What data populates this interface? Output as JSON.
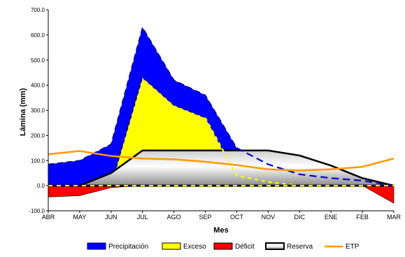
{
  "chart_data": {
    "type": "area",
    "xlabel": "Mes",
    "ylabel": "Lámina (mm)",
    "categories": [
      "ABR",
      "MAY",
      "JUN",
      "JUL",
      "AGO",
      "SEP",
      "OCT",
      "NOV",
      "DIC",
      "ENE",
      "FEB",
      "MAR"
    ],
    "ylim": [
      -100,
      700
    ],
    "yticks": [
      "-100.0",
      "0.0",
      "100.0",
      "200.0",
      "300.0",
      "400.0",
      "500.0",
      "600.0",
      "700.0"
    ],
    "grid": false,
    "legend_position": "bottom",
    "series": [
      {
        "name": "Precipitación",
        "color": "#0000FF",
        "values": [
          85,
          100,
          165,
          630,
          420,
          360,
          150,
          85,
          45,
          30,
          20,
          0
        ]
      },
      {
        "name": "Exceso",
        "color": "#FFFF00",
        "values": [
          0,
          0,
          0,
          430,
          320,
          270,
          40,
          15,
          0,
          0,
          0,
          0
        ]
      },
      {
        "name": "Déficit",
        "color": "#FF0000",
        "values": [
          -45,
          -40,
          -8,
          0,
          0,
          0,
          0,
          0,
          0,
          0,
          0,
          -70
        ]
      },
      {
        "name": "Reserva",
        "color": "#000000",
        "values": [
          0,
          0,
          50,
          140,
          140,
          140,
          140,
          140,
          120,
          80,
          30,
          0
        ]
      },
      {
        "name": "ETP",
        "color": "#FF9900",
        "values": [
          125,
          138,
          118,
          108,
          105,
          95,
          82,
          65,
          60,
          65,
          75,
          108
        ]
      }
    ]
  }
}
